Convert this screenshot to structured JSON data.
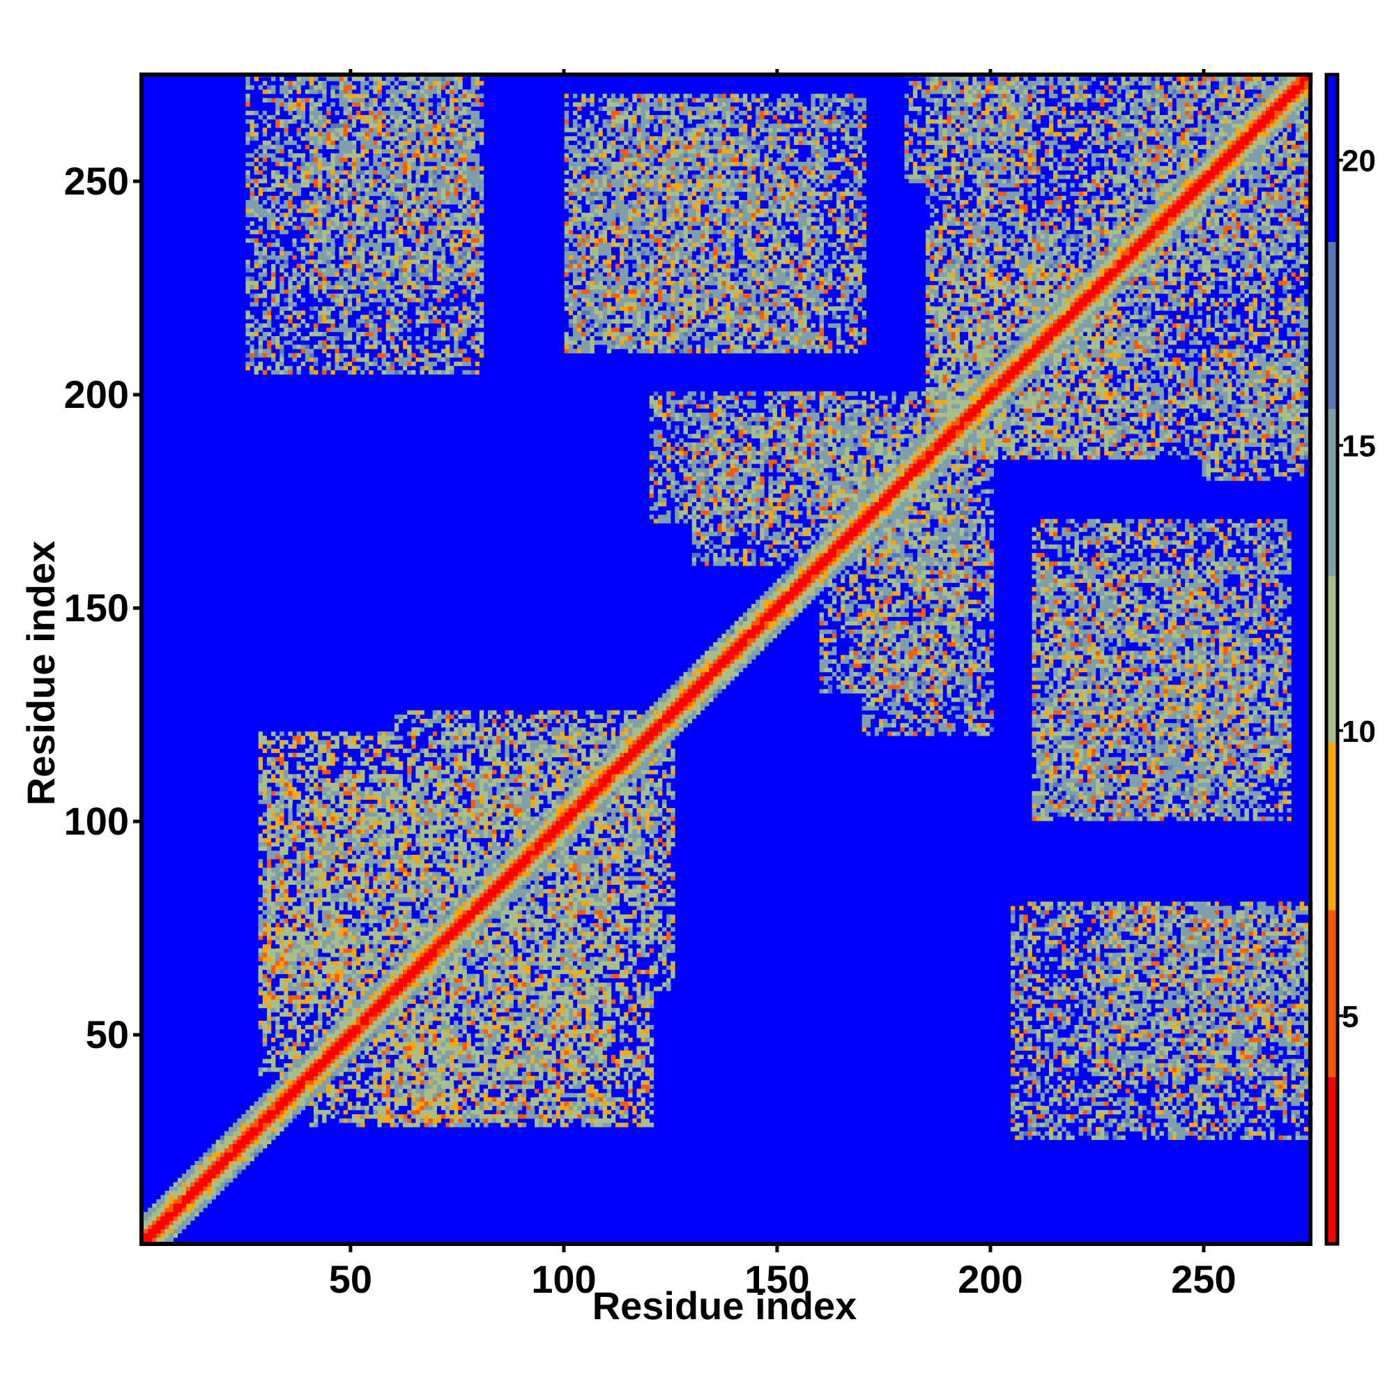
{
  "chart_data": {
    "type": "heatmap",
    "title": "",
    "xlabel": "Residue index",
    "ylabel": "Residue index",
    "n_residues": 275,
    "xlim": [
      1,
      275
    ],
    "ylim": [
      1,
      275
    ],
    "x_ticks": [
      50,
      100,
      150,
      200,
      250
    ],
    "x_tick_labels": [
      "50",
      "100",
      "150",
      "200",
      "250"
    ],
    "y_ticks": [
      50,
      100,
      150,
      200,
      250
    ],
    "y_tick_labels": [
      "50",
      "100",
      "150",
      "200",
      "250"
    ],
    "colorbar": {
      "range": [
        1,
        21.5
      ],
      "ticks": [
        5,
        10,
        15,
        20
      ],
      "tick_labels": [
        "5",
        "10",
        "15",
        "20"
      ],
      "colors": [
        "#ff0000",
        "#ff5a00",
        "#ffa500",
        "#a8bf8a",
        "#7f9faa",
        "#5a78b8",
        "#0000ff"
      ]
    },
    "contact_regions": [
      {
        "x": [
          40,
          75
        ],
        "y": [
          28,
          50
        ],
        "value": 9
      },
      {
        "x": [
          28,
          60
        ],
        "y": [
          55,
          120
        ],
        "value": 9
      },
      {
        "x": [
          60,
          110
        ],
        "y": [
          28,
          70
        ],
        "value": 10
      },
      {
        "x": [
          70,
          125
        ],
        "y": [
          60,
          120
        ],
        "value": 10
      },
      {
        "x": [
          40,
          80
        ],
        "y": [
          225,
          275
        ],
        "value": 11
      },
      {
        "x": [
          100,
          170
        ],
        "y": [
          210,
          270
        ],
        "value": 11
      },
      {
        "x": [
          120,
          170
        ],
        "y": [
          170,
          200
        ],
        "value": 11
      },
      {
        "x": [
          160,
          195
        ],
        "y": [
          130,
          200
        ],
        "value": 11
      },
      {
        "x": [
          185,
          230
        ],
        "y": [
          185,
          240
        ],
        "value": 10
      },
      {
        "x": [
          185,
          275
        ],
        "y": [
          230,
          275
        ],
        "value": 11
      },
      {
        "x": [
          210,
          260
        ],
        "y": [
          100,
          160
        ],
        "value": 11
      },
      {
        "x": [
          205,
          275
        ],
        "y": [
          25,
          80
        ],
        "value": 11
      },
      {
        "x": [
          250,
          275
        ],
        "y": [
          180,
          210
        ],
        "value": 11
      },
      {
        "x": [
          240,
          270
        ],
        "y": [
          110,
          140
        ],
        "value": 11
      }
    ]
  }
}
